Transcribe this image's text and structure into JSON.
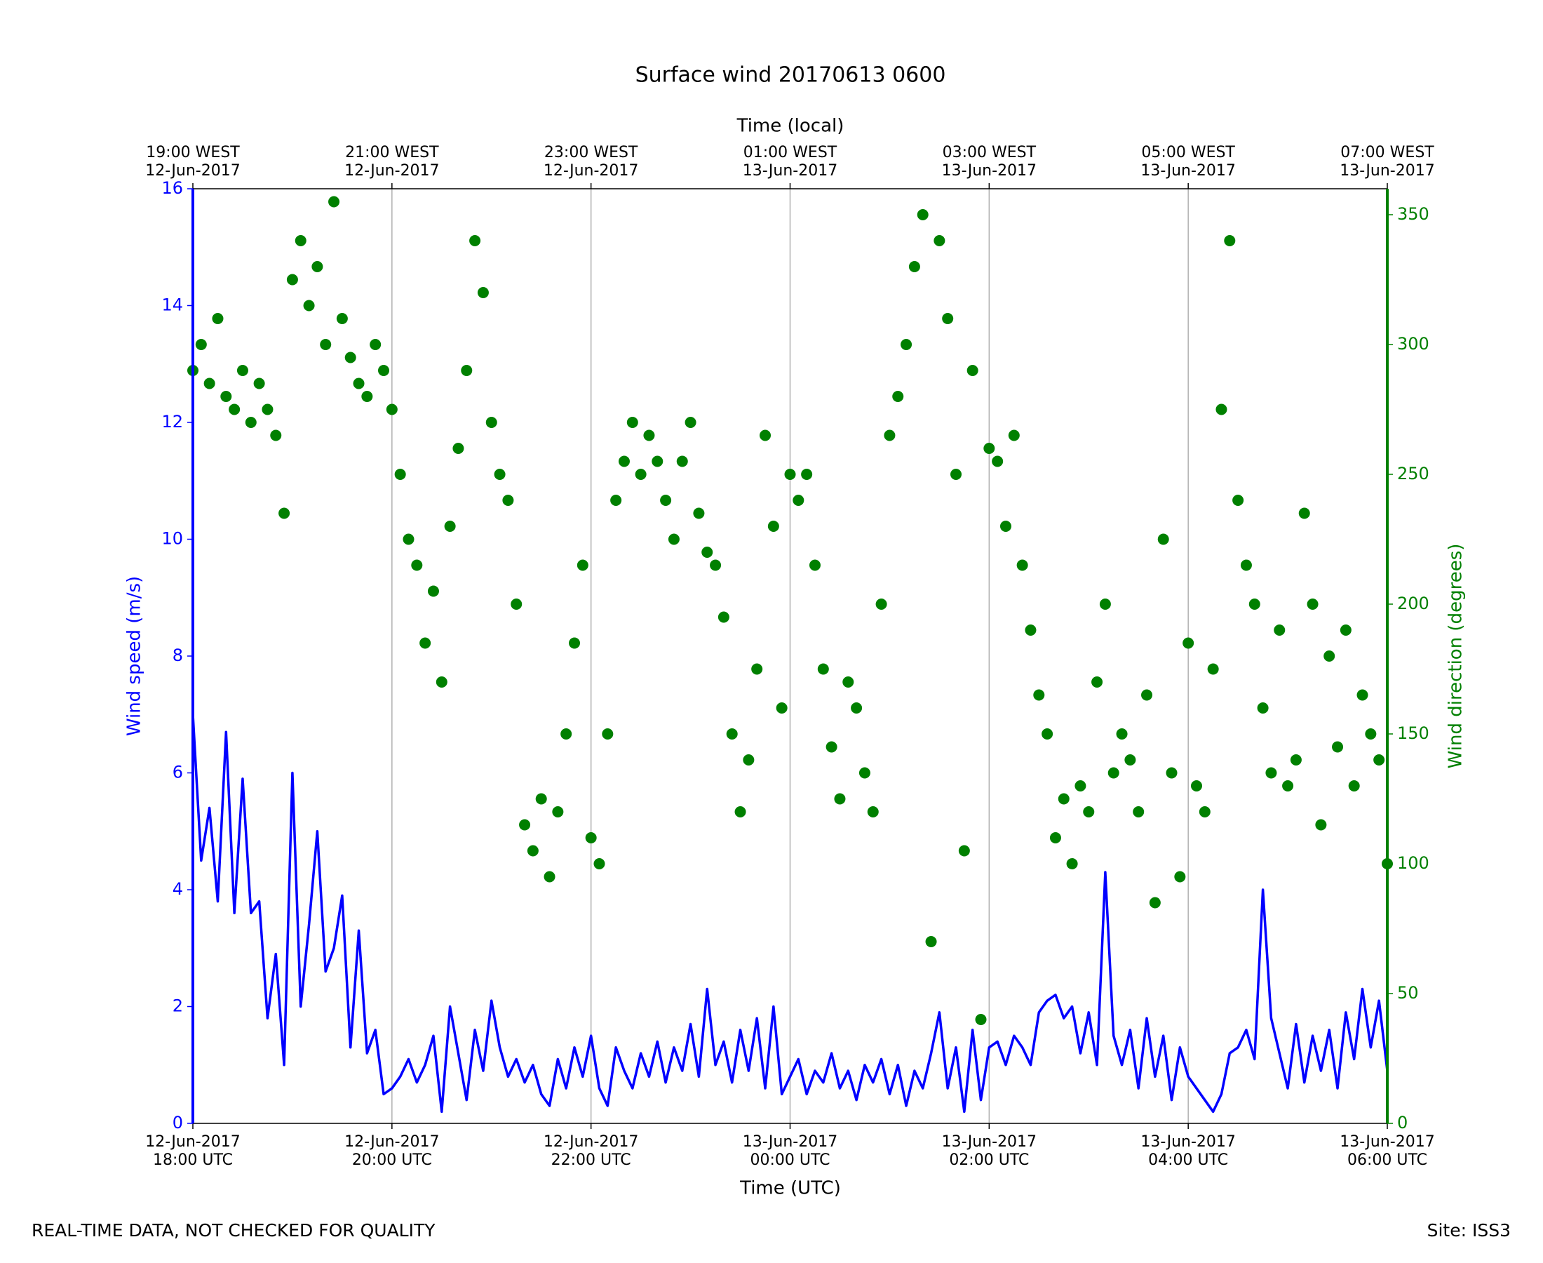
{
  "chart_data": {
    "type": "line",
    "title": "Surface wind 20170613 0600",
    "xlabel": "Time (UTC)",
    "x2label": "Time (local)",
    "ylabel": "Wind speed (m/s)",
    "y2label": "Wind direction (degrees)",
    "annotations": [
      "REAL-TIME DATA, NOT CHECKED FOR QUALITY",
      "Site: ISS3"
    ],
    "grid": "x",
    "xlim": [
      "2017-06-12T18:00",
      "2017-06-13T06:00"
    ],
    "xticks": [
      {
        "value": "2017-06-12T18:00",
        "label": "12-Jun-2017\n18:00 UTC"
      },
      {
        "value": "2017-06-12T20:00",
        "label": "12-Jun-2017\n20:00 UTC"
      },
      {
        "value": "2017-06-12T22:00",
        "label": "12-Jun-2017\n22:00 UTC"
      },
      {
        "value": "2017-06-13T00:00",
        "label": "13-Jun-2017\n00:00 UTC"
      },
      {
        "value": "2017-06-13T02:00",
        "label": "13-Jun-2017\n02:00 UTC"
      },
      {
        "value": "2017-06-13T04:00",
        "label": "13-Jun-2017\n04:00 UTC"
      },
      {
        "value": "2017-06-13T06:00",
        "label": "13-Jun-2017\n06:00 UTC"
      }
    ],
    "x2ticks": [
      {
        "value": "2017-06-12T18:00",
        "label": "19:00 WEST\n12-Jun-2017"
      },
      {
        "value": "2017-06-12T20:00",
        "label": "21:00 WEST\n12-Jun-2017"
      },
      {
        "value": "2017-06-12T22:00",
        "label": "23:00 WEST\n12-Jun-2017"
      },
      {
        "value": "2017-06-13T00:00",
        "label": "01:00 WEST\n13-Jun-2017"
      },
      {
        "value": "2017-06-13T02:00",
        "label": "03:00 WEST\n13-Jun-2017"
      },
      {
        "value": "2017-06-13T04:00",
        "label": "05:00 WEST\n13-Jun-2017"
      },
      {
        "value": "2017-06-13T06:00",
        "label": "07:00 WEST\n13-Jun-2017"
      }
    ],
    "ylim": [
      0,
      16
    ],
    "yticks": [
      0,
      2,
      4,
      6,
      8,
      10,
      12,
      14,
      16
    ],
    "y2lim": [
      0,
      360
    ],
    "y2ticks": [
      0,
      50,
      100,
      150,
      200,
      250,
      300,
      350
    ],
    "x": [
      "2017-06-12T18:00",
      "2017-06-12T18:05",
      "2017-06-12T18:10",
      "2017-06-12T18:15",
      "2017-06-12T18:20",
      "2017-06-12T18:25",
      "2017-06-12T18:30",
      "2017-06-12T18:35",
      "2017-06-12T18:40",
      "2017-06-12T18:45",
      "2017-06-12T18:50",
      "2017-06-12T18:55",
      "2017-06-12T19:00",
      "2017-06-12T19:05",
      "2017-06-12T19:10",
      "2017-06-12T19:15",
      "2017-06-12T19:20",
      "2017-06-12T19:25",
      "2017-06-12T19:30",
      "2017-06-12T19:35",
      "2017-06-12T19:40",
      "2017-06-12T19:45",
      "2017-06-12T19:50",
      "2017-06-12T19:55",
      "2017-06-12T20:00",
      "2017-06-12T20:05",
      "2017-06-12T20:10",
      "2017-06-12T20:15",
      "2017-06-12T20:20",
      "2017-06-12T20:25",
      "2017-06-12T20:30",
      "2017-06-12T20:35",
      "2017-06-12T20:40",
      "2017-06-12T20:45",
      "2017-06-12T20:50",
      "2017-06-12T20:55",
      "2017-06-12T21:00",
      "2017-06-12T21:05",
      "2017-06-12T21:10",
      "2017-06-12T21:15",
      "2017-06-12T21:20",
      "2017-06-12T21:25",
      "2017-06-12T21:30",
      "2017-06-12T21:35",
      "2017-06-12T21:40",
      "2017-06-12T21:45",
      "2017-06-12T21:50",
      "2017-06-12T21:55",
      "2017-06-12T22:00",
      "2017-06-12T22:05",
      "2017-06-12T22:10",
      "2017-06-12T22:15",
      "2017-06-12T22:20",
      "2017-06-12T22:25",
      "2017-06-12T22:30",
      "2017-06-12T22:35",
      "2017-06-12T22:40",
      "2017-06-12T22:45",
      "2017-06-12T22:50",
      "2017-06-12T22:55",
      "2017-06-12T23:00",
      "2017-06-12T23:05",
      "2017-06-12T23:10",
      "2017-06-12T23:15",
      "2017-06-12T23:20",
      "2017-06-12T23:25",
      "2017-06-12T23:30",
      "2017-06-12T23:35",
      "2017-06-12T23:40",
      "2017-06-12T23:45",
      "2017-06-12T23:50",
      "2017-06-12T23:55",
      "2017-06-13T00:00",
      "2017-06-13T00:05",
      "2017-06-13T00:10",
      "2017-06-13T00:15",
      "2017-06-13T00:20",
      "2017-06-13T00:25",
      "2017-06-13T00:30",
      "2017-06-13T00:35",
      "2017-06-13T00:40",
      "2017-06-13T00:45",
      "2017-06-13T00:50",
      "2017-06-13T00:55",
      "2017-06-13T01:00",
      "2017-06-13T01:05",
      "2017-06-13T01:10",
      "2017-06-13T01:15",
      "2017-06-13T01:20",
      "2017-06-13T01:25",
      "2017-06-13T01:30",
      "2017-06-13T01:35",
      "2017-06-13T01:40",
      "2017-06-13T01:45",
      "2017-06-13T01:50",
      "2017-06-13T01:55",
      "2017-06-13T02:00",
      "2017-06-13T02:05",
      "2017-06-13T02:10",
      "2017-06-13T02:15",
      "2017-06-13T02:20",
      "2017-06-13T02:25",
      "2017-06-13T02:30",
      "2017-06-13T02:35",
      "2017-06-13T02:40",
      "2017-06-13T02:45",
      "2017-06-13T02:50",
      "2017-06-13T02:55",
      "2017-06-13T03:00",
      "2017-06-13T03:05",
      "2017-06-13T03:10",
      "2017-06-13T03:15",
      "2017-06-13T03:20",
      "2017-06-13T03:25",
      "2017-06-13T03:30",
      "2017-06-13T03:35",
      "2017-06-13T03:40",
      "2017-06-13T03:45",
      "2017-06-13T03:50",
      "2017-06-13T03:55",
      "2017-06-13T04:00",
      "2017-06-13T04:05",
      "2017-06-13T04:10",
      "2017-06-13T04:15",
      "2017-06-13T04:20",
      "2017-06-13T04:25",
      "2017-06-13T04:30",
      "2017-06-13T04:35",
      "2017-06-13T04:40",
      "2017-06-13T04:45",
      "2017-06-13T04:50",
      "2017-06-13T04:55",
      "2017-06-13T05:00",
      "2017-06-13T05:05",
      "2017-06-13T05:10",
      "2017-06-13T05:15",
      "2017-06-13T05:20",
      "2017-06-13T05:25",
      "2017-06-13T05:30",
      "2017-06-13T05:35",
      "2017-06-13T05:40",
      "2017-06-13T05:45",
      "2017-06-13T05:50",
      "2017-06-13T05:55",
      "2017-06-13T06:00"
    ],
    "series": [
      {
        "type": "line",
        "axis": "y",
        "color": "#0000ff",
        "values": [
          7.0,
          4.5,
          5.4,
          3.8,
          6.7,
          3.6,
          5.9,
          3.6,
          3.8,
          1.8,
          2.9,
          1.0,
          6.0,
          2.0,
          3.4,
          5.0,
          2.6,
          3.0,
          3.9,
          1.3,
          3.3,
          1.2,
          1.6,
          0.5,
          0.6,
          0.8,
          1.1,
          0.7,
          1.0,
          1.5,
          0.2,
          2.0,
          1.2,
          0.4,
          1.6,
          0.9,
          2.1,
          1.3,
          0.8,
          1.1,
          0.7,
          1.0,
          0.5,
          0.3,
          1.1,
          0.6,
          1.3,
          0.8,
          1.5,
          0.6,
          0.3,
          1.3,
          0.9,
          0.6,
          1.2,
          0.8,
          1.4,
          0.7,
          1.3,
          0.9,
          1.7,
          0.8,
          2.3,
          1.0,
          1.4,
          0.7,
          1.6,
          0.9,
          1.8,
          0.6,
          2.0,
          0.5,
          0.8,
          1.1,
          0.5,
          0.9,
          0.7,
          1.2,
          0.6,
          0.9,
          0.4,
          1.0,
          0.7,
          1.1,
          0.5,
          1.0,
          0.3,
          0.9,
          0.6,
          1.2,
          1.9,
          0.6,
          1.3,
          0.2,
          1.6,
          0.4,
          1.3,
          1.4,
          1.0,
          1.5,
          1.3,
          1.0,
          1.9,
          2.1,
          2.2,
          1.8,
          2.0,
          1.2,
          1.9,
          1.0,
          4.3,
          1.5,
          1.0,
          1.6,
          0.6,
          1.8,
          0.8,
          1.5,
          0.4,
          1.3,
          0.8,
          0.6,
          0.4,
          0.2,
          0.5,
          1.2,
          1.3,
          1.6,
          1.1,
          4.0,
          1.8,
          1.2,
          0.6,
          1.7,
          0.7,
          1.5,
          0.9,
          1.6,
          0.6,
          1.9,
          1.1,
          2.3,
          1.3,
          2.1,
          0.9
        ]
      },
      {
        "type": "scatter",
        "axis": "y2",
        "color": "#008000",
        "values": [
          290,
          300,
          285,
          310,
          280,
          275,
          290,
          270,
          285,
          275,
          265,
          235,
          325,
          340,
          315,
          330,
          300,
          355,
          310,
          295,
          285,
          280,
          300,
          290,
          275,
          250,
          225,
          215,
          185,
          205,
          170,
          230,
          260,
          290,
          340,
          320,
          270,
          250,
          240,
          200,
          115,
          105,
          125,
          95,
          120,
          150,
          185,
          215,
          110,
          100,
          150,
          240,
          255,
          270,
          250,
          265,
          255,
          240,
          225,
          255,
          270,
          235,
          220,
          215,
          195,
          150,
          120,
          140,
          175,
          265,
          230,
          160,
          250,
          240,
          250,
          215,
          175,
          145,
          125,
          170,
          160,
          135,
          120,
          200,
          265,
          280,
          300,
          330,
          350,
          70,
          340,
          310,
          250,
          105,
          290,
          40,
          260,
          255,
          230,
          265,
          215,
          190,
          165,
          150,
          110,
          125,
          100,
          130,
          120,
          170,
          200,
          135,
          150,
          140,
          120,
          165,
          85,
          225,
          135,
          95,
          185,
          130,
          120,
          175,
          275,
          340,
          240,
          215,
          200,
          160,
          135,
          190,
          130,
          140,
          235,
          200,
          115,
          180,
          145,
          190,
          130,
          165,
          150,
          140,
          100
        ]
      }
    ]
  }
}
